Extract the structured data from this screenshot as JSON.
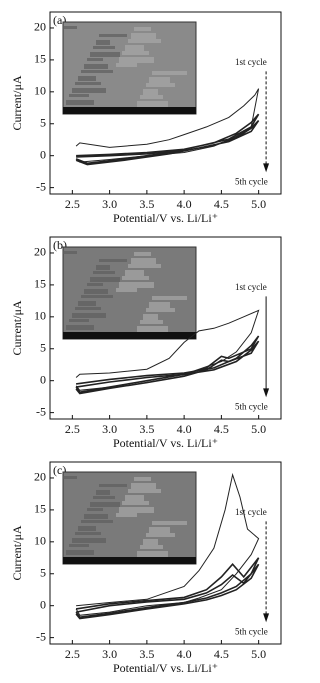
{
  "chart_data": [
    {
      "type": "line",
      "label": "(a)",
      "xlabel": "Potential/V vs. Li/Li⁺",
      "ylabel": "Current/μA",
      "xlim": [
        2.2,
        5.3
      ],
      "ylim": [
        -6,
        22.5
      ],
      "xticks": [
        2.5,
        {
          "value": 3,
          "label": "3.0"
        },
        3.5,
        {
          "value": 4,
          "label": "4.0"
        },
        4.5,
        {
          "value": 5,
          "label": "5.0"
        }
      ],
      "yticks": [
        -5,
        0,
        5,
        10,
        15,
        20
      ],
      "annotations": [
        "1st cycle",
        "5th cycle"
      ],
      "series": [
        {
          "color": "#222",
          "x": [
            2.55,
            2.6,
            3.0,
            3.5,
            3.8,
            4.0,
            4.3,
            4.6,
            4.8,
            4.95,
            5.0,
            4.9,
            4.7,
            4.4,
            4.0,
            3.5,
            3.0,
            2.6,
            2.55
          ],
          "values": [
            1.5,
            2,
            1.3,
            1.8,
            2.5,
            3.3,
            4.5,
            6,
            7.8,
            9.5,
            10.5,
            4.5,
            3,
            1.5,
            0.5,
            0,
            -0.6,
            -1,
            -0.5
          ]
        },
        {
          "color": "#222",
          "x": [
            2.55,
            3.0,
            3.5,
            4.0,
            4.4,
            4.7,
            4.9,
            5.0,
            4.9,
            4.6,
            4.2,
            3.8,
            3.2,
            2.7,
            2.55
          ],
          "values": [
            0,
            0.2,
            0.5,
            1,
            2,
            3.5,
            5.2,
            6.5,
            4.5,
            2.6,
            1.5,
            0.5,
            -0.5,
            -1.2,
            -0.5
          ]
        },
        {
          "color": "#222",
          "x": [
            2.55,
            3.0,
            3.5,
            4.0,
            4.4,
            4.7,
            4.9,
            5.0,
            4.9,
            4.6,
            4.2,
            3.8,
            3.2,
            2.7,
            2.55
          ],
          "values": [
            -0.2,
            0,
            0.3,
            0.8,
            1.6,
            2.8,
            4.3,
            5.5,
            3.8,
            2.2,
            1.2,
            0.3,
            -0.7,
            -1.4,
            -0.7
          ]
        }
      ]
    },
    {
      "type": "line",
      "label": "(b)",
      "xlabel": "Potential/V vs. Li/Li⁺",
      "ylabel": "Current/μA",
      "xlim": [
        2.2,
        5.3
      ],
      "ylim": [
        -6,
        22.5
      ],
      "xticks": [
        2.5,
        {
          "value": 3,
          "label": "3.0"
        },
        3.5,
        {
          "value": 4,
          "label": "4.0"
        },
        4.5,
        {
          "value": 5,
          "label": "5.0"
        }
      ],
      "yticks": [
        -5,
        0,
        5,
        10,
        15,
        20
      ],
      "annotations": [
        "1st cycle",
        "5th cycle"
      ],
      "series": [
        {
          "color": "#222",
          "x": [
            2.55,
            2.6,
            3.0,
            3.5,
            3.8,
            4.0,
            4.2,
            4.4,
            4.6,
            4.8,
            5.0,
            4.9,
            4.7,
            4.5,
            4.2,
            4.0,
            3.5,
            3.0,
            2.6,
            2.55
          ],
          "values": [
            0.5,
            1,
            1.2,
            1.8,
            3.5,
            6,
            7.8,
            8.2,
            9,
            10,
            11,
            7.5,
            4.5,
            3,
            1.8,
            1,
            0,
            -1,
            -1.5,
            -0.8
          ]
        },
        {
          "color": "#222",
          "x": [
            2.55,
            3.0,
            3.5,
            4.0,
            4.4,
            4.7,
            4.9,
            5.0,
            4.9,
            4.6,
            4.5,
            4.3,
            4.0,
            3.5,
            3.0,
            2.6,
            2.55
          ],
          "values": [
            -0.5,
            0.2,
            0.8,
            1.2,
            2,
            3.5,
            5.5,
            7,
            5,
            3.5,
            3.8,
            2,
            1,
            0,
            -1,
            -1.8,
            -1
          ]
        },
        {
          "color": "#222",
          "x": [
            2.55,
            3.0,
            3.5,
            4.0,
            4.4,
            4.7,
            4.9,
            5.0,
            4.9,
            4.6,
            4.5,
            4.3,
            4.0,
            3.5,
            3.0,
            2.6,
            2.55
          ],
          "values": [
            -1,
            -0.2,
            0.5,
            1,
            1.7,
            3,
            4.8,
            6.2,
            4.3,
            3,
            3.2,
            1.7,
            0.7,
            -0.3,
            -1.2,
            -2,
            -1.3
          ]
        }
      ]
    },
    {
      "type": "line",
      "label": "(c)",
      "xlabel": "Potential/V vs. Li/Li⁺",
      "ylabel": "Current/μA",
      "xlim": [
        2.2,
        5.3
      ],
      "ylim": [
        -6,
        22.5
      ],
      "xticks": [
        2.5,
        {
          "value": 3,
          "label": "3.0"
        },
        3.5,
        {
          "value": 4,
          "label": "4.0"
        },
        4.5,
        {
          "value": 5,
          "label": "5.0"
        }
      ],
      "yticks": [
        -5,
        0,
        5,
        10,
        15,
        20
      ],
      "annotations": [
        "1st cycle",
        "5th cycle"
      ],
      "series": [
        {
          "color": "#222",
          "x": [
            2.55,
            3.0,
            3.5,
            4.0,
            4.2,
            4.4,
            4.55,
            4.65,
            4.75,
            4.85,
            5.0,
            4.9,
            4.7,
            4.5,
            4.2,
            4.0,
            3.5,
            3.0,
            2.6,
            2.55
          ],
          "values": [
            0,
            0.5,
            1,
            3,
            5.5,
            9,
            15,
            20.5,
            17,
            12,
            10.5,
            8,
            5,
            2.5,
            1.2,
            0.5,
            0,
            -1,
            -1.5,
            -0.5
          ]
        },
        {
          "color": "#222",
          "x": [
            2.55,
            3.0,
            3.5,
            4.0,
            4.3,
            4.5,
            4.65,
            4.8,
            5.0,
            4.9,
            4.7,
            4.5,
            4.3,
            4.0,
            3.5,
            3.0,
            2.6,
            2.55
          ],
          "values": [
            -0.5,
            0.3,
            0.8,
            1.3,
            2.5,
            4.5,
            6.5,
            4.5,
            7.5,
            5,
            3,
            2,
            1.2,
            0.5,
            -0.3,
            -1.2,
            -1.8,
            -1
          ]
        },
        {
          "color": "#222",
          "x": [
            2.55,
            3.0,
            3.5,
            4.0,
            4.3,
            4.5,
            4.65,
            4.8,
            5.0,
            4.9,
            4.7,
            4.5,
            4.3,
            4.0,
            3.5,
            3.0,
            2.6,
            2.55
          ],
          "values": [
            -1,
            0,
            0.6,
            1,
            2,
            3.3,
            4.8,
            3.5,
            6.5,
            4.3,
            2.5,
            1.6,
            0.9,
            0.3,
            -0.5,
            -1.4,
            -2,
            -1.3
          ]
        }
      ]
    }
  ]
}
